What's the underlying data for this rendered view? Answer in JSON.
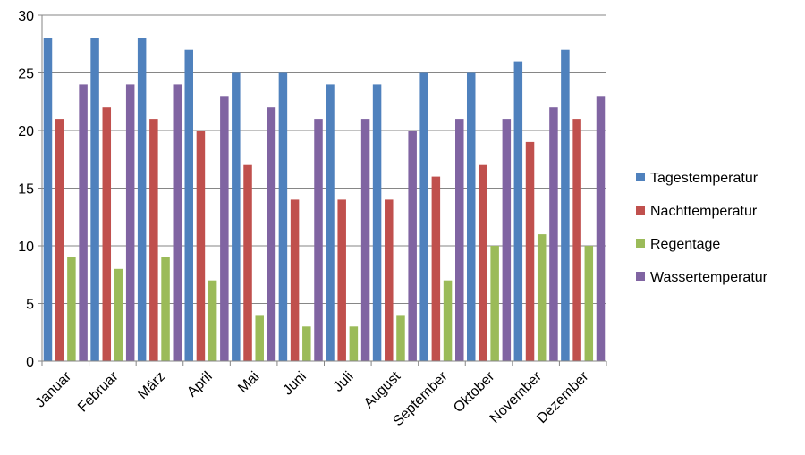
{
  "chart_data": {
    "type": "bar",
    "title": "",
    "xlabel": "",
    "ylabel": "",
    "ylim": [
      0,
      30
    ],
    "yticks": [
      0,
      5,
      10,
      15,
      20,
      25,
      30
    ],
    "grid": "horizontal",
    "legend_position": "right",
    "categories": [
      "Januar",
      "Februar",
      "März",
      "April",
      "Mai",
      "Juni",
      "Juli",
      "August",
      "September",
      "Oktober",
      "November",
      "Dezember"
    ],
    "series": [
      {
        "name": "Tagestemperatur",
        "color": "#4F81BD",
        "values": [
          28,
          28,
          28,
          27,
          25,
          25,
          24,
          24,
          25,
          25,
          26,
          27
        ]
      },
      {
        "name": "Nachttemperatur",
        "color": "#C0504D",
        "values": [
          21,
          22,
          21,
          20,
          17,
          14,
          14,
          14,
          16,
          17,
          19,
          21
        ]
      },
      {
        "name": "Regentage",
        "color": "#9BBB59",
        "values": [
          9,
          8,
          9,
          7,
          4,
          3,
          3,
          4,
          7,
          10,
          11,
          10
        ]
      },
      {
        "name": "Wassertemperatur",
        "color": "#8064A2",
        "values": [
          24,
          24,
          24,
          23,
          22,
          21,
          21,
          20,
          21,
          21,
          22,
          23
        ]
      }
    ]
  }
}
